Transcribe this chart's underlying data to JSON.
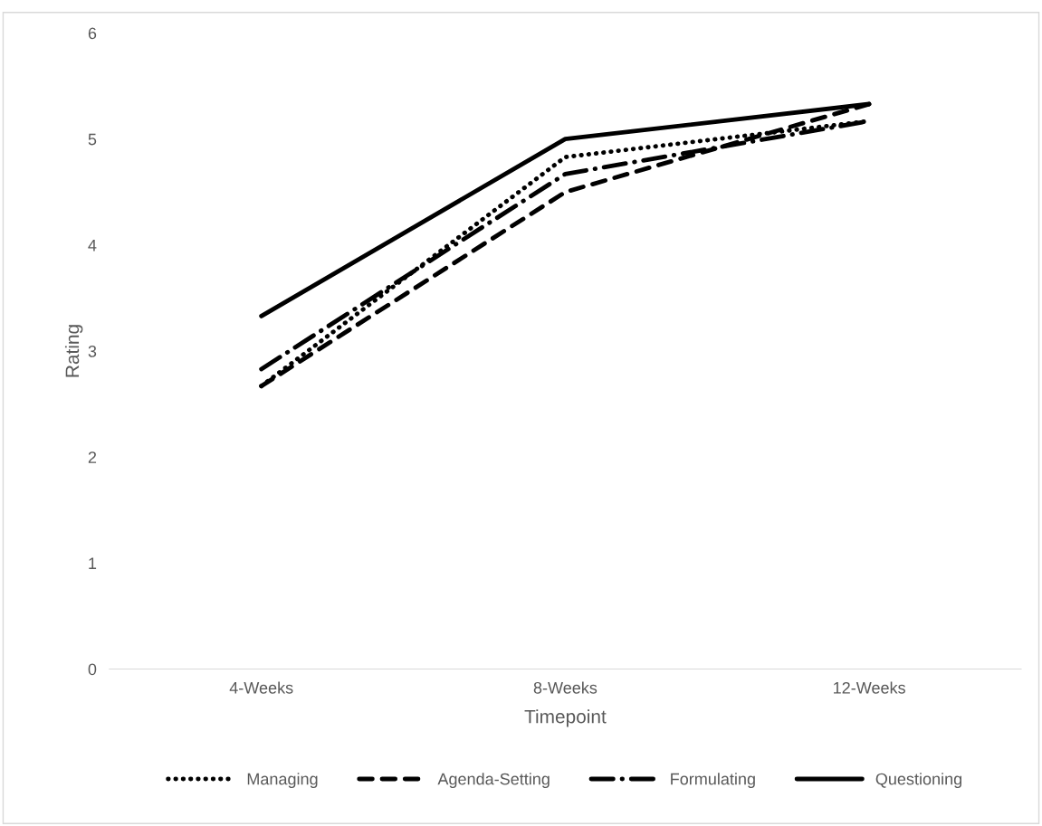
{
  "chart_data": {
    "type": "line",
    "xlabel": "Timepoint",
    "ylabel": "Rating",
    "categories": [
      "4-Weeks",
      "8-Weeks",
      "12-Weeks"
    ],
    "series": [
      {
        "name": "Managing",
        "color": "#000000",
        "line_style": "dotted",
        "values": [
          2.67,
          4.83,
          5.17
        ]
      },
      {
        "name": "Agenda-Setting",
        "color": "#000000",
        "line_style": "dashed",
        "values": [
          2.67,
          4.5,
          5.33
        ]
      },
      {
        "name": "Formulating",
        "color": "#000000",
        "line_style": "dashdot",
        "values": [
          2.83,
          4.67,
          5.17
        ]
      },
      {
        "name": "Questioning",
        "color": "#000000",
        "line_style": "solid",
        "values": [
          3.33,
          5.0,
          5.33
        ]
      }
    ],
    "ylim": [
      0,
      6
    ],
    "yticks": [
      0,
      1,
      2,
      3,
      4,
      5,
      6
    ],
    "grid": false,
    "legend": "bottom",
    "marker": "none"
  }
}
